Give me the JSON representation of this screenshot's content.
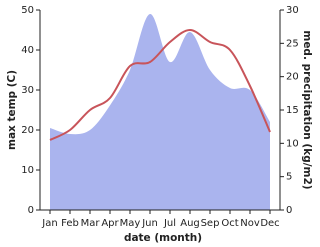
{
  "chart_data": {
    "type": "line",
    "x_label": "date (month)",
    "y_label": "max temp (C)",
    "y2_label": "med. precipitation (kg/m2)",
    "categories": [
      "Jan",
      "Feb",
      "Mar",
      "Apr",
      "May",
      "Jun",
      "Jul",
      "Aug",
      "Sep",
      "Oct",
      "Nov",
      "Dec"
    ],
    "series": [
      {
        "name": "med. precipitation (kg/m2)",
        "type": "area",
        "axis": "y2",
        "color": "#aab4ee",
        "values": [
          12.3,
          11.4,
          12,
          15.7,
          21,
          29.4,
          22.2,
          26.7,
          21,
          18.3,
          18,
          13.2
        ]
      },
      {
        "name": "max temp (C)",
        "type": "line",
        "color": "#c8545a",
        "values": [
          17.5,
          20,
          25,
          28,
          36,
          37,
          42,
          45,
          42,
          40,
          31,
          19.5
        ]
      }
    ],
    "ylim": [
      0,
      50
    ],
    "yticks": [
      0,
      10,
      20,
      30,
      40,
      50
    ],
    "y2lim": [
      0,
      30
    ],
    "y2ticks": [
      0,
      5,
      10,
      15,
      20,
      25,
      30
    ]
  }
}
